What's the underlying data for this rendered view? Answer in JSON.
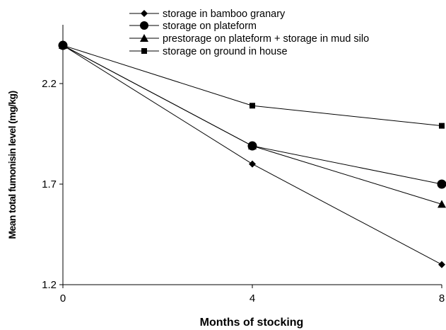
{
  "chart_data": {
    "type": "line",
    "title": "",
    "xlabel": "Months of stocking",
    "ylabel": "Mean total fumonisin level (mg/kg)",
    "x": [
      0,
      4,
      8
    ],
    "xlim": [
      0,
      8
    ],
    "ylim": [
      1.2,
      2.4
    ],
    "x_ticks": [
      "0",
      "4",
      "8"
    ],
    "y_ticks": [
      "1.2",
      "1.7",
      "2.2"
    ],
    "y_tick_values": [
      1.2,
      1.7,
      2.2
    ],
    "x_tick_values": [
      0,
      4,
      8
    ],
    "grid": false,
    "legend_position": "top",
    "series": [
      {
        "name": "storage in bamboo granary",
        "marker": "diamond",
        "values": [
          2.39,
          1.8,
          1.3
        ]
      },
      {
        "name": "storage on plateform",
        "marker": "circle",
        "values": [
          2.39,
          1.89,
          1.7
        ]
      },
      {
        "name": "prestorage on plateform + storage in mud silo",
        "marker": "triangle",
        "values": [
          2.39,
          1.89,
          1.6
        ]
      },
      {
        "name": "storage on ground in house",
        "marker": "square",
        "values": [
          2.39,
          2.09,
          1.99
        ]
      }
    ],
    "colors": {
      "line": "#000000",
      "marker": "#000000"
    }
  }
}
